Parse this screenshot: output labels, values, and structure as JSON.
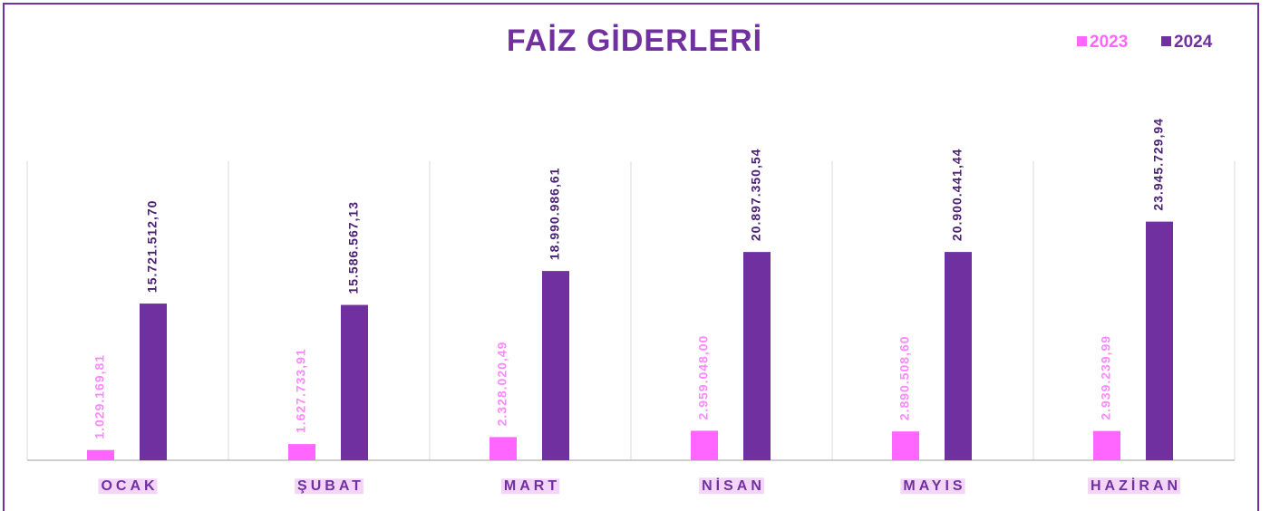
{
  "chart_data": {
    "type": "bar",
    "title": "FAİZ GİDERLERİ",
    "categories": [
      "OCAK",
      "ŞUBAT",
      "MART",
      "NİSAN",
      "MAYIS",
      "HAZİRAN"
    ],
    "series": [
      {
        "name": "2023",
        "color": "#ff66ff",
        "values": [
          1029169.81,
          1627733.91,
          2328020.49,
          2959048.0,
          2890508.6,
          2939239.99
        ],
        "value_labels": [
          "1.029.169,81",
          "1.627.733,91",
          "2.328.020,49",
          "2.959.048,00",
          "2.890.508,60",
          "2.939.239,99"
        ]
      },
      {
        "name": "2024",
        "color": "#7030a0",
        "values": [
          15721512.7,
          15586567.13,
          18990986.61,
          20897350.54,
          20900441.44,
          23945729.94
        ],
        "value_labels": [
          "15.721.512,70",
          "15.586.567,13",
          "18.990.986,61",
          "20.897.350,54",
          "20.900.441,44",
          "23.945.729,94"
        ]
      }
    ],
    "ylim": [
      0,
      30000000
    ],
    "legend": "top-right"
  }
}
